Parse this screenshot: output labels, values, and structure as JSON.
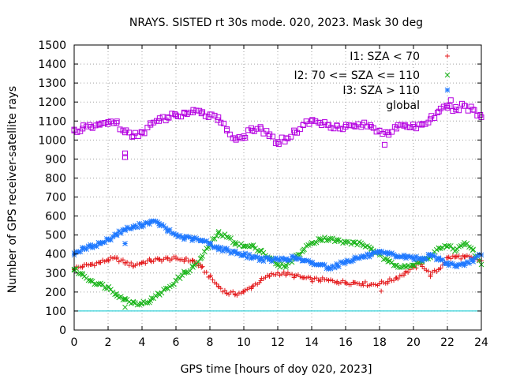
{
  "chart_data": {
    "type": "scatter",
    "title": "NRAYS. SISTED rt 30s mode. 020, 2023. Mask 30 deg",
    "xlabel": "GPS time [hours of doy 020, 2023]",
    "ylabel": "Number of GPS receiver-satellite rays",
    "xlim": [
      0,
      24
    ],
    "ylim": [
      0,
      1500
    ],
    "xticks": [
      "0",
      "2",
      "4",
      "6",
      "8",
      "10",
      "12",
      "14",
      "16",
      "18",
      "20",
      "22",
      "24"
    ],
    "yticks": [
      "0",
      "100",
      "200",
      "300",
      "400",
      "500",
      "600",
      "700",
      "800",
      "900",
      "1000",
      "1100",
      "1200",
      "1300",
      "1400",
      "1500"
    ],
    "grid": true,
    "legend_position": "top-right",
    "reference_line": {
      "y": 100,
      "color": "#00c8d0"
    },
    "series": [
      {
        "name": "I1: SZA < 70",
        "marker": "+",
        "color": "#e41a1c",
        "x": [
          0,
          0.5,
          1,
          1.5,
          2,
          2.5,
          3,
          3.5,
          4,
          4.5,
          5,
          5.5,
          6,
          6.5,
          7,
          7.5,
          8,
          8.5,
          9,
          9.5,
          10,
          10.5,
          11,
          11.5,
          12,
          12.5,
          13,
          13.5,
          14,
          14.5,
          15,
          15.5,
          16,
          16.5,
          17,
          17.5,
          18,
          18.5,
          19,
          19.5,
          20,
          20.5,
          21,
          21.5,
          22,
          22.5,
          23,
          23.5,
          24
        ],
        "y": [
          325,
          335,
          345,
          355,
          370,
          375,
          355,
          340,
          355,
          365,
          370,
          375,
          375,
          370,
          365,
          330,
          280,
          230,
          195,
          190,
          200,
          230,
          260,
          285,
          300,
          295,
          285,
          275,
          265,
          265,
          260,
          255,
          250,
          250,
          245,
          240,
          245,
          255,
          275,
          300,
          330,
          345,
          290,
          320,
          380,
          385,
          385,
          375,
          365
        ]
      },
      {
        "name": "I2: 70 <= SZA <= 110",
        "marker": "x",
        "color": "#18b418",
        "x": [
          0,
          0.5,
          1,
          1.5,
          2,
          2.5,
          3,
          3.5,
          4,
          4.5,
          5,
          5.5,
          6,
          6.5,
          7,
          7.5,
          8,
          8.5,
          9,
          9.5,
          10,
          10.5,
          11,
          11.5,
          12,
          12.5,
          13,
          13.5,
          14,
          14.5,
          15,
          15.5,
          16,
          16.5,
          17,
          17.5,
          18,
          18.5,
          19,
          19.5,
          20,
          20.5,
          21,
          21.5,
          22,
          22.5,
          23,
          23.5,
          24
        ],
        "y": [
          320,
          290,
          260,
          240,
          225,
          190,
          160,
          145,
          140,
          155,
          190,
          220,
          260,
          300,
          330,
          380,
          450,
          510,
          490,
          460,
          440,
          440,
          420,
          380,
          340,
          340,
          380,
          420,
          460,
          480,
          480,
          470,
          460,
          460,
          450,
          430,
          395,
          360,
          340,
          340,
          340,
          360,
          390,
          430,
          440,
          420,
          460,
          420,
          345
        ]
      },
      {
        "name": "I3: SZA > 110",
        "marker": "*",
        "color": "#1e78ff",
        "x": [
          0,
          0.5,
          1,
          1.5,
          2,
          2.5,
          3,
          3.5,
          4,
          4.5,
          5,
          5.5,
          6,
          6.5,
          7,
          7.5,
          8,
          8.5,
          9,
          9.5,
          10,
          10.5,
          11,
          11.5,
          12,
          12.5,
          13,
          13.5,
          14,
          14.5,
          15,
          15.5,
          16,
          16.5,
          17,
          17.5,
          18,
          18.5,
          19,
          19.5,
          20,
          20.5,
          21,
          21.5,
          22,
          22.5,
          23,
          23.5,
          24
        ],
        "y": [
          405,
          425,
          440,
          455,
          475,
          505,
          530,
          540,
          555,
          570,
          560,
          525,
          500,
          485,
          480,
          470,
          455,
          430,
          420,
          410,
          395,
          385,
          375,
          370,
          370,
          375,
          380,
          365,
          350,
          345,
          330,
          340,
          360,
          375,
          385,
          395,
          405,
          400,
          390,
          385,
          380,
          375,
          390,
          375,
          350,
          340,
          340,
          370,
          395
        ]
      },
      {
        "name": "global",
        "marker": "square",
        "color": "#b400e0",
        "x": [
          0,
          0.5,
          1,
          1.5,
          2,
          2.5,
          3,
          3.5,
          4,
          4.5,
          5,
          5.5,
          6,
          6.5,
          7,
          7.5,
          8,
          8.5,
          9,
          9.5,
          10,
          10.5,
          11,
          11.5,
          12,
          12.5,
          13,
          13.5,
          14,
          14.5,
          15,
          15.5,
          16,
          16.5,
          17,
          17.5,
          18,
          18.5,
          19,
          19.5,
          20,
          20.5,
          21,
          21.5,
          22,
          22.5,
          23,
          23.5,
          24
        ],
        "y": [
          1050,
          1060,
          1070,
          1080,
          1095,
          1090,
          1040,
          1020,
          1040,
          1080,
          1100,
          1120,
          1130,
          1140,
          1145,
          1140,
          1135,
          1120,
          1050,
          1010,
          1020,
          1050,
          1060,
          1020,
          990,
          1010,
          1040,
          1080,
          1100,
          1090,
          1080,
          1075,
          1070,
          1075,
          1080,
          1070,
          1050,
          1040,
          1060,
          1080,
          1070,
          1080,
          1110,
          1150,
          1170,
          1160,
          1180,
          1160,
          1120
        ]
      }
    ],
    "outliers": [
      {
        "series": "global",
        "x": 3.0,
        "y": 930
      },
      {
        "series": "global",
        "x": 3.0,
        "y": 910
      },
      {
        "series": "global",
        "x": 18.3,
        "y": 975
      },
      {
        "series": "global",
        "x": 22.2,
        "y": 1210
      },
      {
        "series": "I3: SZA > 110",
        "x": 3.0,
        "y": 455
      },
      {
        "series": "I1: SZA < 70",
        "x": 18.1,
        "y": 205
      },
      {
        "series": "I2: 70 <= SZA <= 110",
        "x": 3.0,
        "y": 120
      }
    ]
  }
}
